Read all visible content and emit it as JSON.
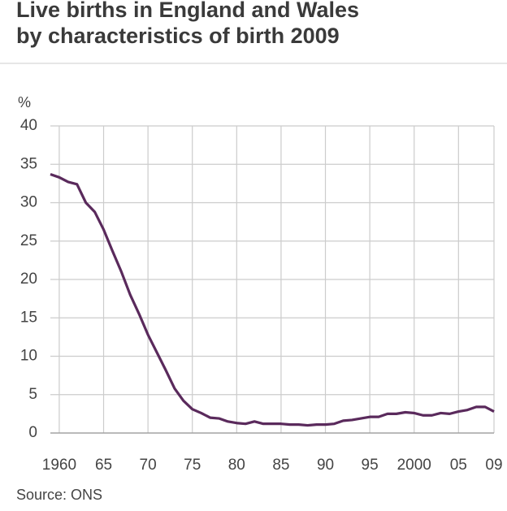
{
  "chart_data": {
    "type": "line",
    "title": "Live births in England and Wales",
    "subtitle": "by characteristics of birth 2009",
    "y_label": "%",
    "source": "Source: ONS",
    "x": [
      1959,
      1960,
      1961,
      1962,
      1963,
      1964,
      1965,
      1966,
      1967,
      1968,
      1969,
      1970,
      1971,
      1972,
      1973,
      1974,
      1975,
      1976,
      1977,
      1978,
      1979,
      1980,
      1981,
      1982,
      1983,
      1984,
      1985,
      1986,
      1987,
      1988,
      1989,
      1990,
      1991,
      1992,
      1993,
      1994,
      1995,
      1996,
      1997,
      1998,
      1999,
      2000,
      2001,
      2002,
      2003,
      2004,
      2005,
      2006,
      2007,
      2008,
      2009
    ],
    "series": [
      {
        "color": "#5a2a5c",
        "values": [
          33.7,
          33.3,
          32.7,
          32.4,
          30.0,
          28.8,
          26.5,
          23.7,
          21.0,
          18.0,
          15.5,
          12.8,
          10.5,
          8.2,
          5.8,
          4.2,
          3.1,
          2.6,
          2.0,
          1.9,
          1.5,
          1.3,
          1.2,
          1.5,
          1.2,
          1.2,
          1.2,
          1.1,
          1.1,
          1.0,
          1.1,
          1.1,
          1.2,
          1.6,
          1.7,
          1.9,
          2.1,
          2.1,
          2.5,
          2.5,
          2.7,
          2.6,
          2.3,
          2.3,
          2.6,
          2.5,
          2.8,
          3.0,
          3.4,
          3.4,
          2.8
        ]
      }
    ],
    "xlim": [
      1959,
      2009
    ],
    "ylim": [
      0,
      40
    ],
    "xticks": [
      1960,
      {
        "value": 1965,
        "label": "65"
      },
      {
        "value": 1970,
        "label": "70"
      },
      {
        "value": 1975,
        "label": "75"
      },
      {
        "value": 1980,
        "label": "80"
      },
      {
        "value": 1985,
        "label": "85"
      },
      {
        "value": 1990,
        "label": "90"
      },
      {
        "value": 1995,
        "label": "95"
      },
      2000,
      {
        "value": 2005,
        "label": "05"
      },
      {
        "value": 2009,
        "label": "09"
      }
    ],
    "yticks": [
      0,
      5,
      10,
      15,
      20,
      25,
      30,
      35,
      40
    ],
    "grid": true
  }
}
